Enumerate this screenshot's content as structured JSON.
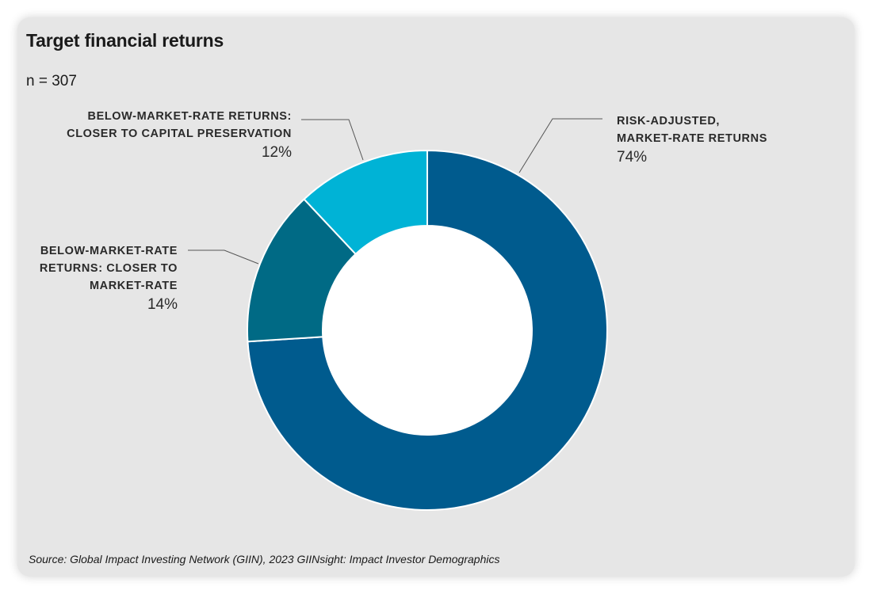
{
  "title": "Target financial returns",
  "subtitle": "n = 307",
  "source": "Source: Global Impact Investing Network (GIIN), 2023 GIINsight: Impact Investor Demographics",
  "colors": {
    "background": "#e6e6e6",
    "risk_adjusted": "#005b8e",
    "closer_to_market": "#006a85",
    "capital_preservation": "#00b3d6"
  },
  "chart_data": {
    "type": "pie",
    "variant": "donut",
    "n": 307,
    "slices": [
      {
        "label_lines": [
          "RISK-ADJUSTED,",
          "MARKET-RATE RETURNS"
        ],
        "value": 74,
        "display": "74%",
        "color": "#005b8e"
      },
      {
        "label_lines": [
          "BELOW-MARKET-RATE",
          "RETURNS: CLOSER TO",
          "MARKET-RATE"
        ],
        "value": 14,
        "display": "14%",
        "color": "#006a85"
      },
      {
        "label_lines": [
          "BELOW-MARKET-RATE RETURNS:",
          "CLOSER TO CAPITAL PRESERVATION"
        ],
        "value": 12,
        "display": "12%",
        "color": "#00b3d6"
      }
    ]
  }
}
